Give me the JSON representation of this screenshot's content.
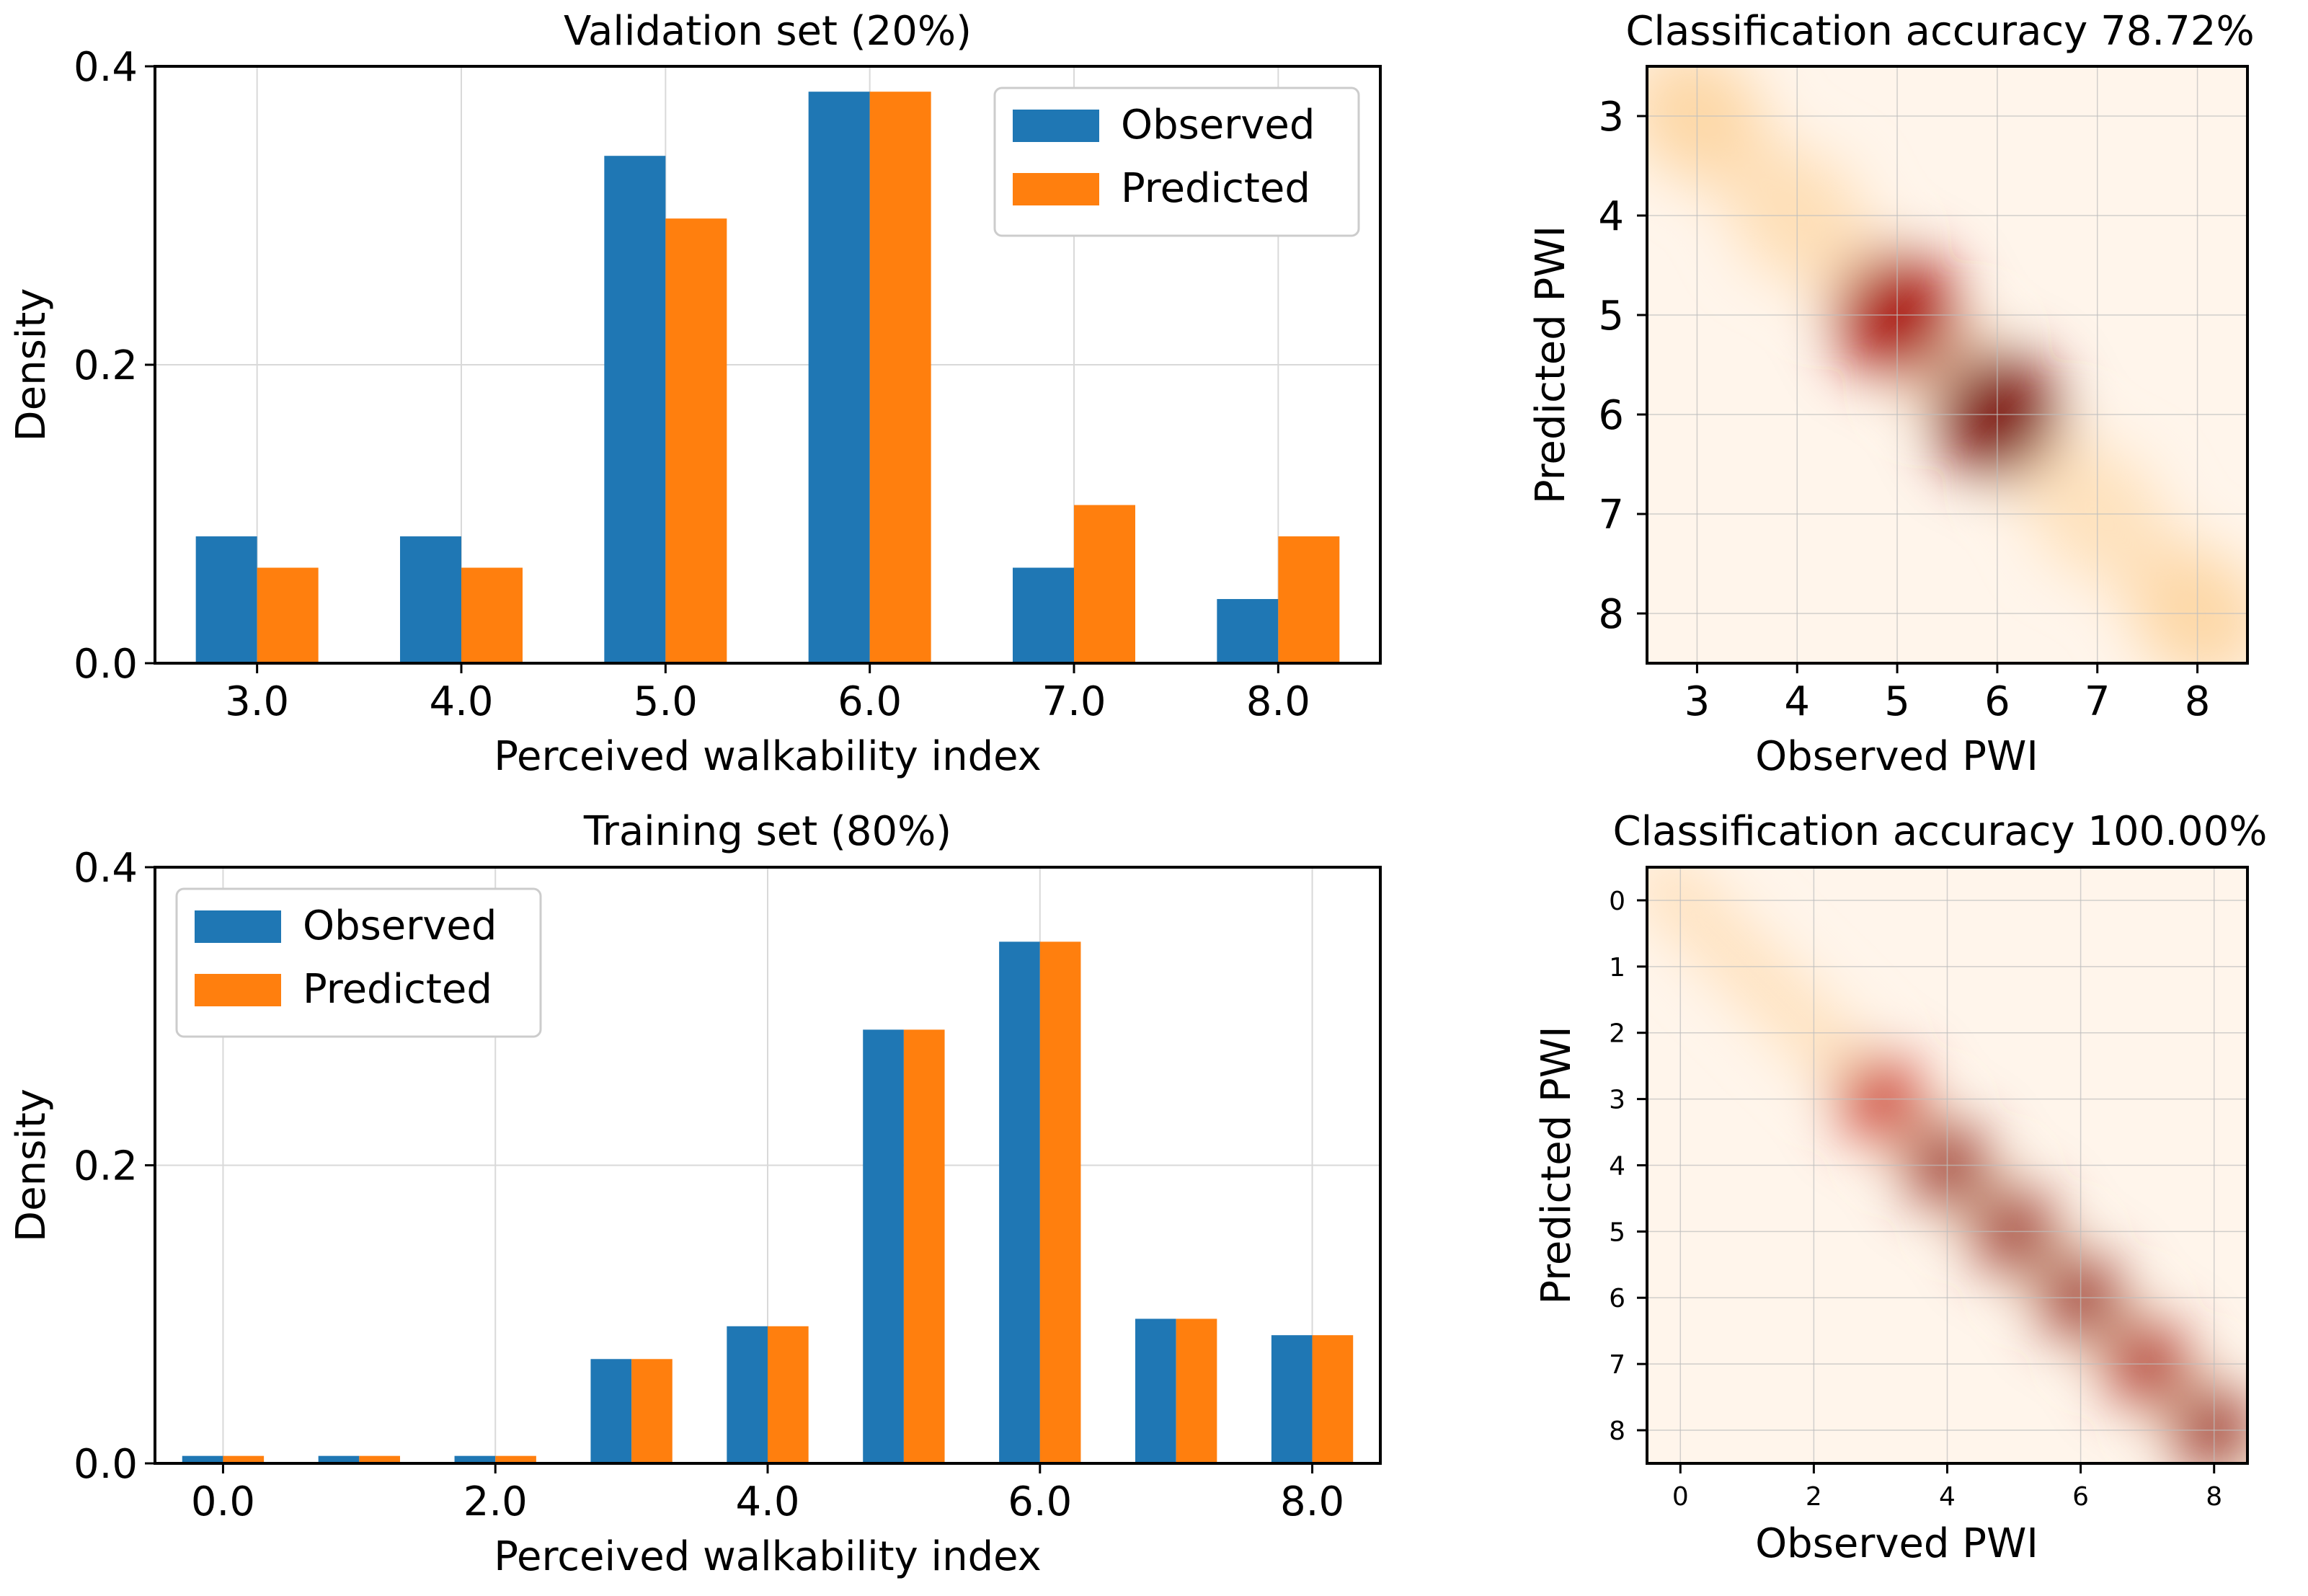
{
  "colors": {
    "observed": "#1f77b4",
    "predicted": "#ff7f0e",
    "heat_low": "#fff5eb",
    "heat_high": "#7f0000"
  },
  "chart_data": [
    {
      "type": "bar",
      "title": "Validation set (20%)",
      "xlabel": "Perceived walkability index",
      "ylabel": "Density",
      "ylim": [
        0,
        0.4
      ],
      "xlim": [
        2.5,
        8.5
      ],
      "yticks": [
        "0.0",
        "0.2",
        "0.4"
      ],
      "categories": [
        "3.0",
        "4.0",
        "5.0",
        "6.0",
        "7.0",
        "8.0"
      ],
      "category_x": [
        3,
        4,
        5,
        6,
        7,
        8
      ],
      "xtick_values": [
        3,
        4,
        5,
        6,
        7,
        8
      ],
      "bar_width": 0.3,
      "grid": true,
      "legend_position": "top-right",
      "series": [
        {
          "name": "Observed",
          "values": [
            0.085,
            0.085,
            0.34,
            0.383,
            0.064,
            0.043
          ]
        },
        {
          "name": "Predicted",
          "values": [
            0.064,
            0.064,
            0.298,
            0.383,
            0.106,
            0.085
          ]
        }
      ]
    },
    {
      "type": "heatmap",
      "title": "Classification accuracy 78.72%",
      "xlabel": "Observed PWI",
      "ylabel": "Predicted PWI",
      "x_ticks": [
        "3",
        "4",
        "5",
        "6",
        "7",
        "8"
      ],
      "y_ticks": [
        "3",
        "4",
        "5",
        "6",
        "7",
        "8"
      ],
      "x_range": [
        2.5,
        8.5
      ],
      "y_range": [
        2.5,
        8.5
      ],
      "colormap": "OrRd",
      "max_intensity": 0.85,
      "grid": true,
      "hotspots": [
        {
          "observed": 6,
          "predicted": 6,
          "weight": 1.0
        },
        {
          "observed": 5,
          "predicted": 5,
          "weight": 0.8
        },
        {
          "observed": 4,
          "predicted": 4,
          "weight": 0.1
        },
        {
          "observed": 7,
          "predicted": 7,
          "weight": 0.08
        },
        {
          "observed": 3,
          "predicted": 3,
          "weight": 0.15
        },
        {
          "observed": 8,
          "predicted": 8,
          "weight": 0.15
        }
      ]
    },
    {
      "type": "bar",
      "title": "Training set (80%)",
      "xlabel": "Perceived walkability index",
      "ylabel": "Density",
      "ylim": [
        0,
        0.4
      ],
      "xlim": [
        -0.5,
        8.5
      ],
      "yticks": [
        "0.0",
        "0.2",
        "0.4"
      ],
      "categories": [
        "0.0",
        "1.0",
        "2.0",
        "3.0",
        "4.0",
        "5.0",
        "6.0",
        "7.0",
        "8.0"
      ],
      "category_x": [
        0,
        1,
        2,
        3,
        4,
        5,
        6,
        7,
        8
      ],
      "xtick_values": [
        0,
        2,
        4,
        6,
        8
      ],
      "xtick_labels": [
        "0.0",
        "2.0",
        "4.0",
        "6.0",
        "8.0"
      ],
      "bar_width": 0.3,
      "grid": true,
      "legend_position": "top-left",
      "series": [
        {
          "name": "Observed",
          "values": [
            0.005,
            0.005,
            0.005,
            0.07,
            0.092,
            0.291,
            0.35,
            0.097,
            0.086
          ]
        },
        {
          "name": "Predicted",
          "values": [
            0.005,
            0.005,
            0.005,
            0.07,
            0.092,
            0.291,
            0.35,
            0.097,
            0.086
          ]
        }
      ]
    },
    {
      "type": "heatmap",
      "title": "Classification accuracy 100.00%",
      "xlabel": "Observed PWI",
      "ylabel": "Predicted PWI",
      "x_ticks": [
        "0",
        "2",
        "4",
        "6",
        "8"
      ],
      "y_ticks": [
        "0",
        "1",
        "2",
        "3",
        "4",
        "5",
        "6",
        "7",
        "8"
      ],
      "x_range": [
        -0.5,
        8.5
      ],
      "y_range": [
        -0.5,
        8.5
      ],
      "colormap": "OrRd",
      "max_intensity": 0.75,
      "grid": true,
      "hotspots": [
        {
          "observed": 3,
          "predicted": 3,
          "weight": 0.7
        },
        {
          "observed": 4,
          "predicted": 4,
          "weight": 1.0
        },
        {
          "observed": 5,
          "predicted": 5,
          "weight": 1.0
        },
        {
          "observed": 6,
          "predicted": 6,
          "weight": 1.0
        },
        {
          "observed": 7,
          "predicted": 7,
          "weight": 0.9
        },
        {
          "observed": 8,
          "predicted": 8,
          "weight": 1.0
        }
      ]
    }
  ]
}
